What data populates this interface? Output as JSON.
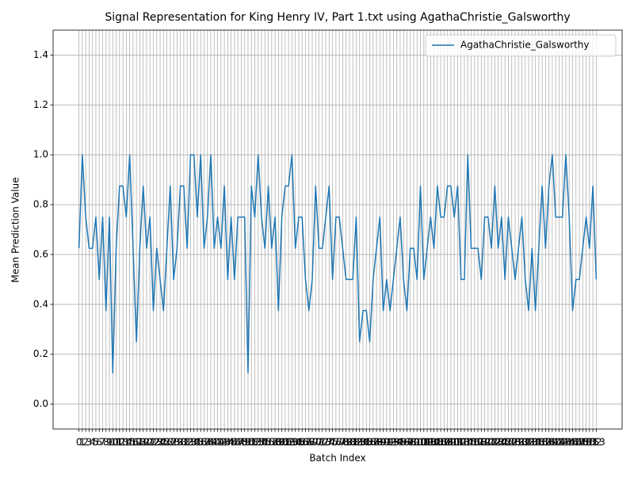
{
  "chart_data": {
    "type": "line",
    "title": "Signal Representation for King Henry IV, Part 1.txt using AgathaChristie_Galsworthy",
    "x_label": "Batch Index",
    "y_label": "Mean Prediction Value",
    "x": [
      0,
      1,
      2,
      3,
      4,
      5,
      6,
      7,
      8,
      9,
      10,
      11,
      12,
      13,
      14,
      15,
      16,
      17,
      18,
      19,
      20,
      21,
      22,
      23,
      24,
      25,
      26,
      27,
      28,
      29,
      30,
      31,
      32,
      33,
      34,
      35,
      36,
      37,
      38,
      39,
      40,
      41,
      42,
      43,
      44,
      45,
      46,
      47,
      48,
      49,
      50,
      51,
      52,
      53,
      54,
      55,
      56,
      57,
      58,
      59,
      60,
      61,
      62,
      63,
      64,
      65,
      66,
      67,
      68,
      69,
      70,
      71,
      72,
      73,
      74,
      75,
      76,
      77,
      78,
      79,
      80,
      81,
      82,
      83,
      84,
      85,
      86,
      87,
      88,
      89,
      90,
      91,
      92,
      93,
      94,
      95,
      96,
      97,
      98,
      99,
      100,
      101,
      102,
      103,
      104,
      105,
      106,
      107,
      108,
      109,
      110,
      111,
      112,
      113,
      114,
      115,
      116,
      117,
      118,
      119,
      120,
      121,
      122,
      123,
      124,
      125,
      126,
      127,
      128,
      129,
      130,
      131,
      132,
      133,
      134,
      135,
      136,
      137,
      138,
      139,
      140,
      141,
      142,
      143,
      144,
      145,
      146,
      147,
      148,
      149,
      150,
      151,
      152,
      153
    ],
    "series": [
      {
        "name": "AgathaChristie_Galsworthy",
        "color": "#1f77b4",
        "values": [
          0.625,
          1.0,
          0.75,
          0.625,
          0.625,
          0.75,
          0.5,
          0.75,
          0.375,
          0.75,
          0.125,
          0.625,
          0.875,
          0.875,
          0.75,
          1.0,
          0.625,
          0.25,
          0.625,
          0.875,
          0.625,
          0.75,
          0.375,
          0.625,
          0.5,
          0.375,
          0.625,
          0.875,
          0.5,
          0.625,
          0.875,
          0.875,
          0.625,
          1.0,
          1.0,
          0.75,
          1.0,
          0.625,
          0.75,
          1.0,
          0.625,
          0.75,
          0.625,
          0.875,
          0.5,
          0.75,
          0.5,
          0.75,
          0.75,
          0.75,
          0.125,
          0.875,
          0.75,
          1.0,
          0.75,
          0.625,
          0.875,
          0.625,
          0.75,
          0.375,
          0.75,
          0.875,
          0.875,
          1.0,
          0.625,
          0.75,
          0.75,
          0.5,
          0.375,
          0.5,
          0.875,
          0.625,
          0.625,
          0.75,
          0.875,
          0.5,
          0.75,
          0.75,
          0.625,
          0.5,
          0.5,
          0.5,
          0.75,
          0.25,
          0.375,
          0.375,
          0.25,
          0.5,
          0.625,
          0.75,
          0.375,
          0.5,
          0.375,
          0.5,
          0.625,
          0.75,
          0.5,
          0.375,
          0.625,
          0.625,
          0.5,
          0.875,
          0.5,
          0.625,
          0.75,
          0.625,
          0.875,
          0.75,
          0.75,
          0.875,
          0.875,
          0.75,
          0.875,
          0.5,
          0.5,
          1.0,
          0.625,
          0.625,
          0.625,
          0.5,
          0.75,
          0.75,
          0.625,
          0.875,
          0.625,
          0.75,
          0.5,
          0.75,
          0.625,
          0.5,
          0.625,
          0.75,
          0.5,
          0.375,
          0.625,
          0.375,
          0.625,
          0.875,
          0.625,
          0.875,
          1.0,
          0.75,
          0.75,
          0.75,
          1.0,
          0.75,
          0.375,
          0.5,
          0.5,
          0.625,
          0.75,
          0.625,
          0.875,
          0.5
        ]
      }
    ],
    "xlim": [
      -7.65,
      160.65
    ],
    "xticks": [
      0,
      1,
      2,
      3,
      4,
      5,
      6,
      7,
      8,
      9,
      10,
      11,
      12,
      13,
      14,
      15,
      16,
      17,
      18,
      19,
      20,
      21,
      22,
      23,
      24,
      25,
      26,
      27,
      28,
      29,
      30,
      31,
      32,
      33,
      34,
      35,
      36,
      37,
      38,
      39,
      40,
      41,
      42,
      43,
      44,
      45,
      46,
      47,
      48,
      49,
      50,
      51,
      52,
      53,
      54,
      55,
      56,
      57,
      58,
      59,
      60,
      61,
      62,
      63,
      64,
      65,
      66,
      67,
      68,
      69,
      70,
      71,
      72,
      73,
      74,
      75,
      76,
      77,
      78,
      79,
      80,
      81,
      82,
      83,
      84,
      85,
      86,
      87,
      88,
      89,
      90,
      91,
      92,
      93,
      94,
      95,
      96,
      97,
      98,
      99,
      100,
      101,
      102,
      103,
      104,
      105,
      106,
      107,
      108,
      109,
      110,
      111,
      112,
      113,
      114,
      115,
      116,
      117,
      118,
      119,
      120,
      121,
      122,
      123,
      124,
      125,
      126,
      127,
      128,
      129,
      130,
      131,
      132,
      133,
      134,
      135,
      136,
      137,
      138,
      139,
      140,
      141,
      142,
      143,
      144,
      145,
      146,
      147,
      148,
      149,
      150,
      151,
      152,
      153
    ],
    "ylim": [
      -0.1,
      1.5
    ],
    "yticks": [
      {
        "value": 0,
        "label": "0.0"
      },
      0.2,
      0.4,
      0.6,
      0.8,
      {
        "value": 1,
        "label": "1.0"
      },
      1.2,
      1.4
    ],
    "grid": true,
    "legend": "upper right"
  }
}
